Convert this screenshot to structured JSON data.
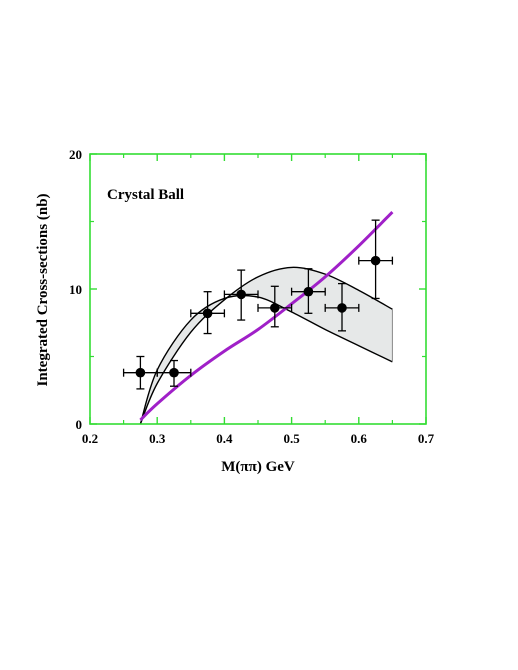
{
  "chart_data": {
    "type": "scatter",
    "title": "",
    "annotation": "Crystal Ball",
    "xlabel": "M(ππ) GeV",
    "ylabel": "Integrated Cross-sections (nb)",
    "xlim": [
      0.2,
      0.7
    ],
    "ylim": [
      0,
      20
    ],
    "x_ticks": [
      "0.2",
      "0.3",
      "0.4",
      "0.5",
      "0.6",
      "0.7"
    ],
    "y_ticks": [
      "0",
      "10",
      "20"
    ],
    "grid": false,
    "colors": {
      "frame": "#33dd33",
      "band_fill": "#e6e8e8",
      "curve": "#000000",
      "purple_curve": "#a020c8",
      "points": "#000000"
    },
    "points": [
      {
        "x": 0.275,
        "y": 3.8,
        "xerr": 0.025,
        "ylo": 2.6,
        "yhi": 5.0
      },
      {
        "x": 0.325,
        "y": 3.8,
        "xerr": 0.025,
        "ylo": 2.8,
        "yhi": 4.7
      },
      {
        "x": 0.375,
        "y": 8.2,
        "xerr": 0.025,
        "ylo": 6.7,
        "yhi": 9.8
      },
      {
        "x": 0.425,
        "y": 9.6,
        "xerr": 0.025,
        "ylo": 7.7,
        "yhi": 11.4
      },
      {
        "x": 0.475,
        "y": 8.6,
        "xerr": 0.025,
        "ylo": 7.2,
        "yhi": 10.2
      },
      {
        "x": 0.525,
        "y": 9.8,
        "xerr": 0.025,
        "ylo": 8.2,
        "yhi": 11.5
      },
      {
        "x": 0.575,
        "y": 8.6,
        "xerr": 0.025,
        "ylo": 6.9,
        "yhi": 10.4
      },
      {
        "x": 0.625,
        "y": 12.1,
        "xerr": 0.025,
        "ylo": 9.3,
        "yhi": 15.1
      }
    ],
    "band_upper": {
      "x": [
        0.275,
        0.3,
        0.35,
        0.4,
        0.45,
        0.5,
        0.55,
        0.6,
        0.65
      ],
      "y": [
        0,
        3.0,
        6.8,
        9.2,
        10.9,
        11.6,
        11.1,
        9.9,
        8.5
      ]
    },
    "band_lower": {
      "x": [
        0.275,
        0.3,
        0.35,
        0.4,
        0.45,
        0.5,
        0.55,
        0.6,
        0.65
      ],
      "y": [
        0,
        4.0,
        7.7,
        9.3,
        9.4,
        8.3,
        7.0,
        5.8,
        4.6
      ]
    },
    "purple_line": {
      "x": [
        0.275,
        0.3,
        0.35,
        0.4,
        0.45,
        0.5,
        0.55,
        0.6,
        0.65
      ],
      "y": [
        0.3,
        1.5,
        3.6,
        5.4,
        7.0,
        8.9,
        10.9,
        13.2,
        15.7
      ]
    }
  }
}
